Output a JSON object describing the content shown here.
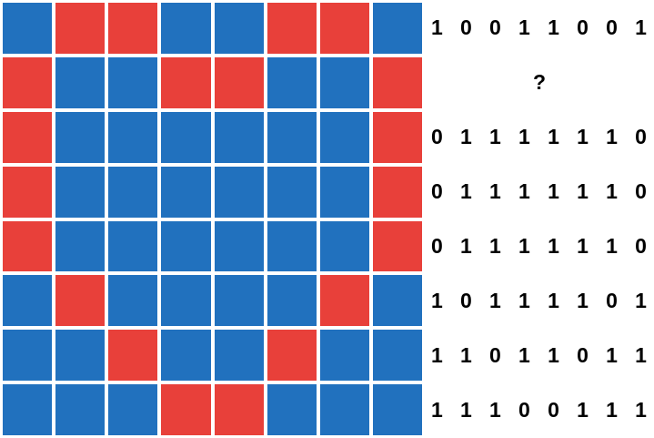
{
  "palette": {
    "blue": "#2171BE",
    "red": "#E8403A",
    "background": "#FFFFFF",
    "text_color": "#000000"
  },
  "grid": {
    "rows": 8,
    "cols": 8,
    "legend": {
      "blue_means": "1",
      "red_means": "0"
    },
    "cell_colors": [
      [
        "blue",
        "red",
        "red",
        "blue",
        "blue",
        "red",
        "red",
        "blue"
      ],
      [
        "red",
        "blue",
        "blue",
        "red",
        "red",
        "blue",
        "blue",
        "red"
      ],
      [
        "red",
        "blue",
        "blue",
        "blue",
        "blue",
        "blue",
        "blue",
        "red"
      ],
      [
        "red",
        "blue",
        "blue",
        "blue",
        "blue",
        "blue",
        "blue",
        "red"
      ],
      [
        "red",
        "blue",
        "blue",
        "blue",
        "blue",
        "blue",
        "blue",
        "red"
      ],
      [
        "blue",
        "red",
        "blue",
        "blue",
        "blue",
        "blue",
        "red",
        "blue"
      ],
      [
        "blue",
        "blue",
        "red",
        "blue",
        "blue",
        "red",
        "blue",
        "blue"
      ],
      [
        "blue",
        "blue",
        "blue",
        "red",
        "red",
        "blue",
        "blue",
        "blue"
      ]
    ]
  },
  "bit_rows": [
    {
      "type": "bits",
      "digits": [
        "1",
        "0",
        "0",
        "1",
        "1",
        "0",
        "0",
        "1"
      ]
    },
    {
      "type": "unknown",
      "label": "?"
    },
    {
      "type": "bits",
      "digits": [
        "0",
        "1",
        "1",
        "1",
        "1",
        "1",
        "1",
        "0"
      ]
    },
    {
      "type": "bits",
      "digits": [
        "0",
        "1",
        "1",
        "1",
        "1",
        "1",
        "1",
        "0"
      ]
    },
    {
      "type": "bits",
      "digits": [
        "0",
        "1",
        "1",
        "1",
        "1",
        "1",
        "1",
        "0"
      ]
    },
    {
      "type": "bits",
      "digits": [
        "1",
        "0",
        "1",
        "1",
        "1",
        "1",
        "0",
        "1"
      ]
    },
    {
      "type": "bits",
      "digits": [
        "1",
        "1",
        "0",
        "1",
        "1",
        "0",
        "1",
        "1"
      ]
    },
    {
      "type": "bits",
      "digits": [
        "1",
        "1",
        "1",
        "0",
        "0",
        "1",
        "1",
        "1"
      ]
    }
  ]
}
